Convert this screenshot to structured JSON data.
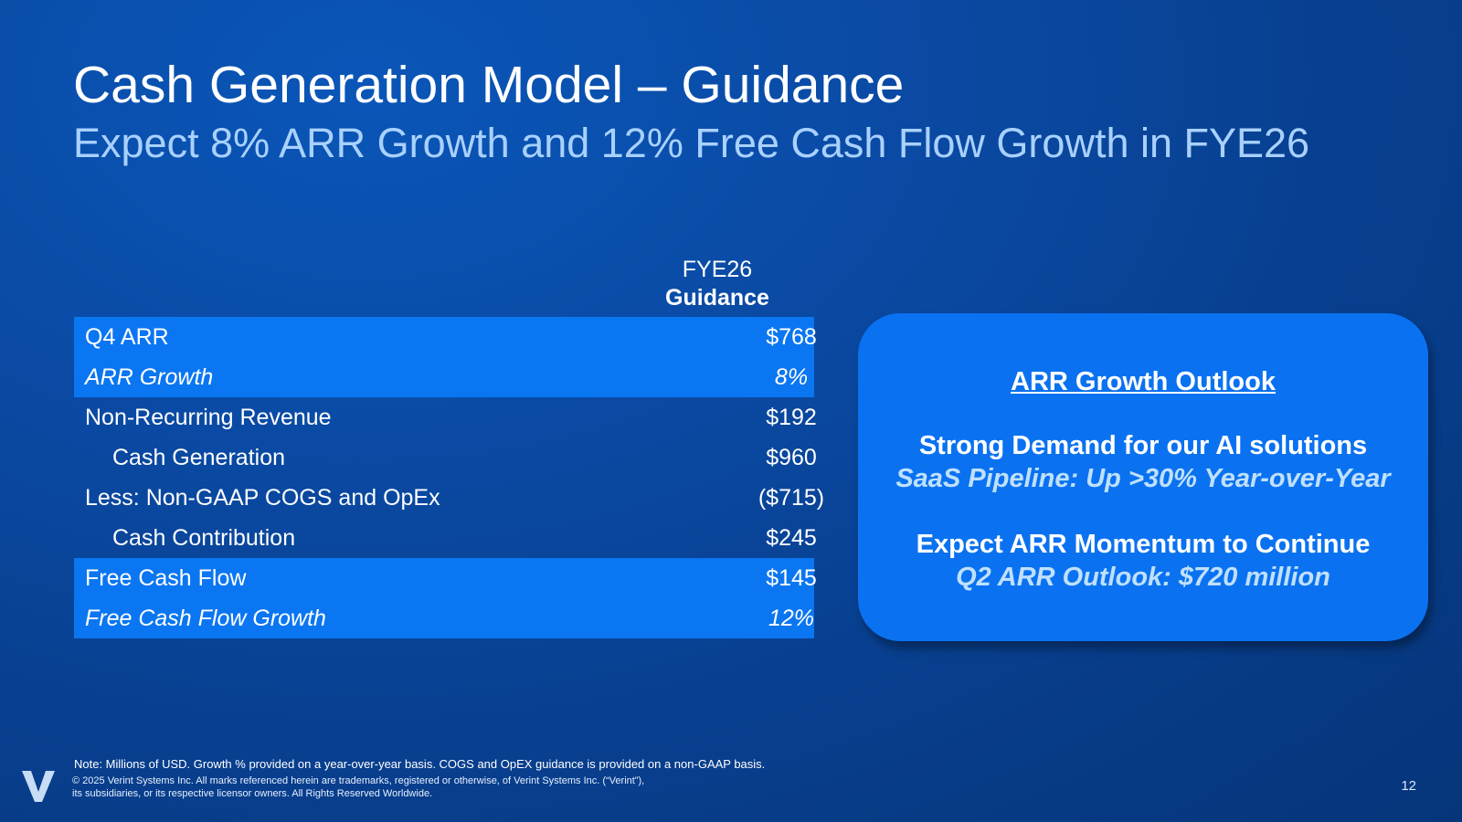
{
  "slide": {
    "title": "Cash Generation Model – Guidance",
    "subtitle": "Expect 8% ARR Growth and 12% Free Cash Flow Growth in FYE26",
    "page_number": "12"
  },
  "table": {
    "column_header_line1": "FYE26",
    "column_header_line2": "Guidance",
    "rows": [
      {
        "label": "Q4 ARR",
        "value": "$768"
      },
      {
        "label": "ARR Growth",
        "value": "8%"
      },
      {
        "label": "Non-Recurring Revenue",
        "value": "$192"
      },
      {
        "label": "Cash Generation",
        "value": "$960"
      },
      {
        "label": "Less: Non-GAAP COGS and OpEx",
        "value": "($715)"
      },
      {
        "label": "Cash Contribution",
        "value": "$245"
      },
      {
        "label": "Free Cash Flow",
        "value": "$145"
      },
      {
        "label": "Free Cash Flow Growth",
        "value": "12%"
      }
    ],
    "highlight_color": "#0a76f2"
  },
  "outlook": {
    "heading": "ARR Growth Outlook",
    "item1_title": "Strong Demand for our AI solutions",
    "item1_sub": "SaaS Pipeline: Up >30% Year-over-Year",
    "item2_title": "Expect ARR Momentum to Continue",
    "item2_sub": "Q2 ARR Outlook: $720 million",
    "box_color": "#0a72f0"
  },
  "footer": {
    "note": "Note: Millions of USD. Growth % provided on a year-over-year basis. COGS and OpEX guidance is provided on a non-GAAP basis.",
    "legal_line1": "© 2025 Verint Systems Inc. All marks referenced herein are trademarks, registered or otherwise, of Verint Systems Inc. (“Verint”),",
    "legal_line2": "its subsidiaries, or its respective licensor owners. All Rights Reserved Worldwide.",
    "logo_icon": "verint-v-logo-icon"
  },
  "colors": {
    "background": "#0a4aa4",
    "subtitle": "#a9d1ff",
    "outlook_sub": "#bfe0ff"
  }
}
